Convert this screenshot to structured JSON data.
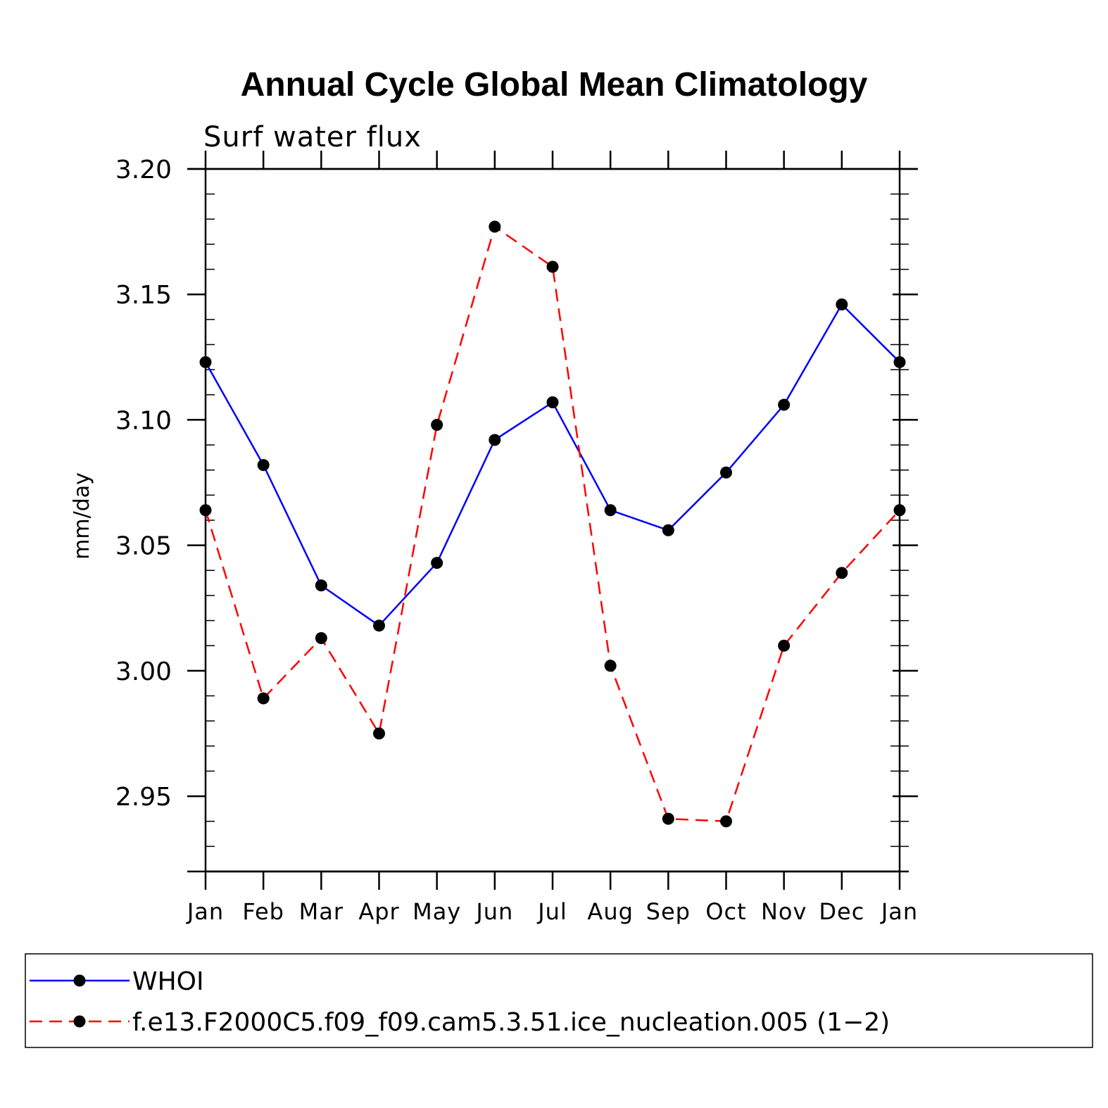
{
  "chart_data": {
    "type": "line",
    "title": "Annual Cycle Global Mean Climatology",
    "subtitle": "Surf water flux",
    "xlabel": "",
    "ylabel": "mm/day",
    "categories": [
      "Jan",
      "Feb",
      "Mar",
      "Apr",
      "May",
      "Jun",
      "Jul",
      "Aug",
      "Sep",
      "Oct",
      "Nov",
      "Dec",
      "Jan"
    ],
    "ylim": [
      2.92,
      3.2
    ],
    "yticks": [
      2.95,
      3.0,
      3.05,
      3.1,
      3.15,
      3.2
    ],
    "ytick_labels": [
      "2.95",
      "3.00",
      "3.05",
      "3.10",
      "3.15",
      "3.20"
    ],
    "grid": false,
    "legend_position": "bottom",
    "series": [
      {
        "name": "WHOI",
        "color": "#0000ff",
        "dash": "solid",
        "values": [
          3.123,
          3.082,
          3.034,
          3.018,
          3.043,
          3.092,
          3.107,
          3.064,
          3.056,
          3.079,
          3.106,
          3.146,
          3.123
        ]
      },
      {
        "name": "f.e13.F2000C5.f09_f09.cam5.3.51.ice_nucleation.005 (1−2)",
        "color": "#ff0000",
        "dash": "dashed",
        "values": [
          3.064,
          2.989,
          3.013,
          2.975,
          3.098,
          3.177,
          3.161,
          3.002,
          2.941,
          2.94,
          3.01,
          3.039,
          3.064
        ]
      }
    ]
  }
}
